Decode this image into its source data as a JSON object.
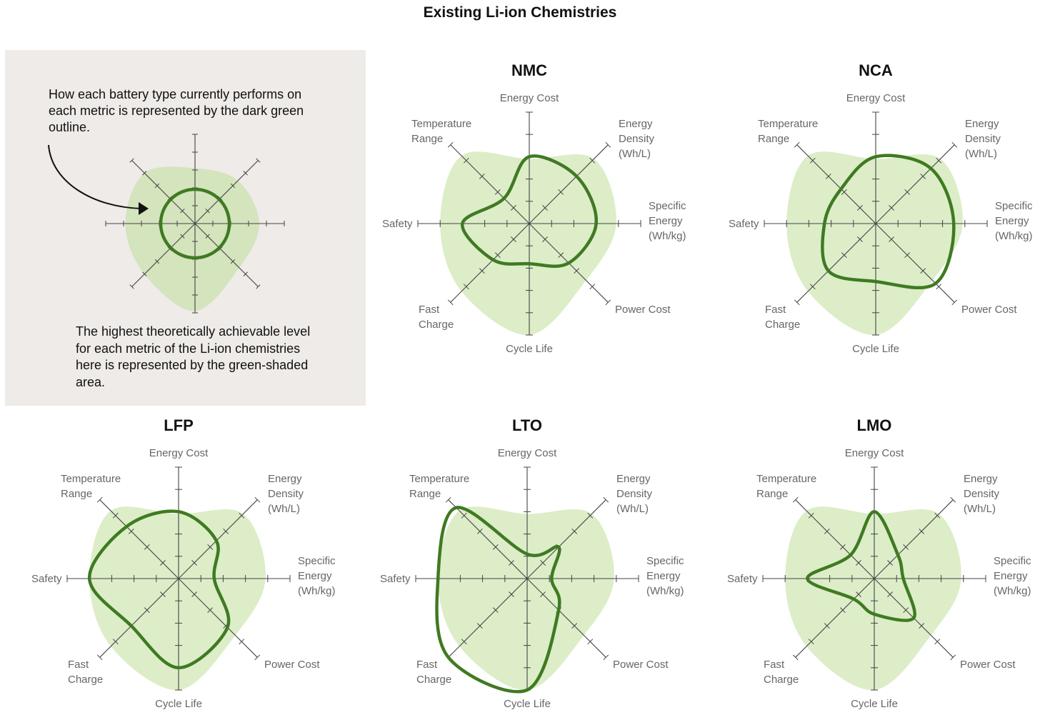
{
  "title": "Existing Li-ion Chemistries",
  "legend": {
    "outline_note": "How each battery type currently performs on each metric is represented by the dark green outline.",
    "area_note": "The highest theoretically achievable level for each metric of the Li-ion chemistries here is represented by the green-shaded area."
  },
  "colors": {
    "outline": "#3f7a22",
    "potential_area": "#dcedc8",
    "axis": "#444444",
    "legend_background": "#eeebe8"
  },
  "chart_data": [
    {
      "type": "radar",
      "title": "NMC",
      "axes": [
        "Energy Cost",
        "Energy Density (Wh/L)",
        "Specific Energy (Wh/kg)",
        "Power Cost",
        "Cycle Life",
        "Fast Charge",
        "Safety",
        "Temperature Range"
      ],
      "scale_max": 5,
      "series": [
        {
          "values": [
            3.0,
            3.0,
            3.0,
            2.5,
            1.8,
            2.3,
            3.0,
            1.6
          ]
        },
        {
          "values": [
            2.9,
            4.1,
            3.9,
            3.6,
            5.0,
            4.3,
            4.0,
            4.3
          ]
        }
      ]
    },
    {
      "type": "radar",
      "title": "NCA",
      "axes": [
        "Energy Cost",
        "Energy Density (Wh/L)",
        "Specific Energy (Wh/kg)",
        "Power Cost",
        "Cycle Life",
        "Fast Charge",
        "Safety",
        "Temperature Range"
      ],
      "scale_max": 5,
      "series": [
        {
          "values": [
            3.0,
            3.5,
            3.5,
            3.8,
            2.6,
            3.0,
            2.3,
            2.2
          ]
        },
        {
          "values": [
            2.9,
            4.1,
            3.9,
            3.6,
            5.0,
            4.3,
            4.0,
            4.3
          ]
        }
      ]
    },
    {
      "type": "radar",
      "title": "LFP",
      "axes": [
        "Energy Cost",
        "Energy Density (Wh/L)",
        "Specific Energy (Wh/kg)",
        "Power Cost",
        "Cycle Life",
        "Fast Charge",
        "Safety",
        "Temperature Range"
      ],
      "scale_max": 5,
      "series": [
        {
          "values": [
            3.0,
            2.4,
            1.6,
            3.1,
            4.0,
            3.0,
            4.0,
            3.3
          ]
        },
        {
          "values": [
            2.9,
            4.1,
            3.9,
            3.6,
            5.0,
            4.3,
            4.0,
            4.3
          ]
        }
      ]
    },
    {
      "type": "radar",
      "title": "LTO",
      "axes": [
        "Energy Cost",
        "Energy Density (Wh/L)",
        "Specific Energy (Wh/kg)",
        "Power Cost",
        "Cycle Life",
        "Fast Charge",
        "Safety",
        "Temperature Range"
      ],
      "scale_max": 5,
      "series": [
        {
          "values": [
            1.1,
            2.0,
            1.1,
            2.0,
            5.0,
            5.0,
            4.0,
            4.5
          ]
        },
        {
          "values": [
            2.9,
            4.1,
            3.9,
            3.6,
            5.0,
            4.3,
            4.0,
            4.3
          ]
        }
      ]
    },
    {
      "type": "radar",
      "title": "LMO",
      "axes": [
        "Energy Cost",
        "Energy Density (Wh/L)",
        "Specific Energy (Wh/kg)",
        "Power Cost",
        "Cycle Life",
        "Fast Charge",
        "Safety",
        "Temperature Range"
      ],
      "scale_max": 5,
      "series": [
        {
          "values": [
            3.0,
            1.5,
            1.3,
            2.5,
            1.6,
            1.3,
            3.0,
            1.5
          ]
        },
        {
          "values": [
            2.9,
            4.1,
            3.9,
            3.6,
            5.0,
            4.3,
            4.0,
            4.3
          ]
        }
      ]
    }
  ]
}
